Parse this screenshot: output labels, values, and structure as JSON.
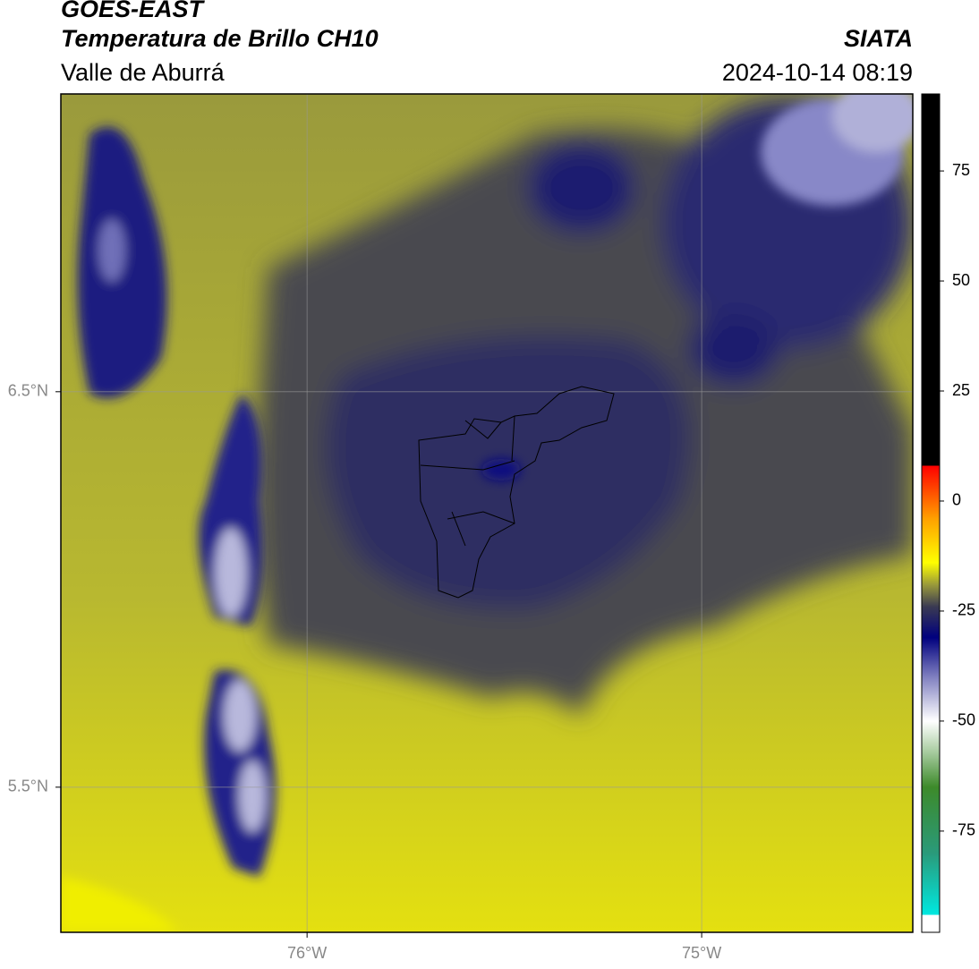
{
  "header": {
    "title": "GOES-EAST",
    "subtitle": "Temperatura de Brillo CH10",
    "region": "Valle de Aburrá",
    "source": "SIATA",
    "datetime": "2024-10-14 08:19"
  },
  "map": {
    "xlim": [
      -76.624,
      -74.465
    ],
    "ylim": [
      5.133,
      7.253
    ],
    "xticks": [
      {
        "value": -76,
        "label": "76°W"
      },
      {
        "value": -75,
        "label": "75°W"
      }
    ],
    "yticks": [
      {
        "value": 6.5,
        "label": "6.5°N"
      },
      {
        "value": 5.5,
        "label": "5.5°N"
      }
    ],
    "grid": true
  },
  "colorbar": {
    "lim": [
      -98,
      92.5
    ],
    "ticks": [
      75,
      50,
      25,
      0,
      -25,
      -50,
      -75
    ],
    "stops": [
      {
        "value": -98,
        "color": "#ffffff"
      },
      {
        "value": -94,
        "color": "#ffffff"
      },
      {
        "value": -94,
        "color": "#00e8e0"
      },
      {
        "value": -80,
        "color": "#2a9a7a"
      },
      {
        "value": -65,
        "color": "#3d8a2a"
      },
      {
        "value": -57,
        "color": "#a8cca0"
      },
      {
        "value": -50,
        "color": "#ffffff"
      },
      {
        "value": -40,
        "color": "#8080c0"
      },
      {
        "value": -31,
        "color": "#00007e"
      },
      {
        "value": -24,
        "color": "#3a3a52"
      },
      {
        "value": -19,
        "color": "#9a9a3a"
      },
      {
        "value": -14,
        "color": "#ffff00"
      },
      {
        "value": -4,
        "color": "#ffa000"
      },
      {
        "value": 8,
        "color": "#ff0000"
      },
      {
        "value": 8,
        "color": "#000000"
      },
      {
        "value": 92.5,
        "color": "#000000"
      }
    ]
  }
}
